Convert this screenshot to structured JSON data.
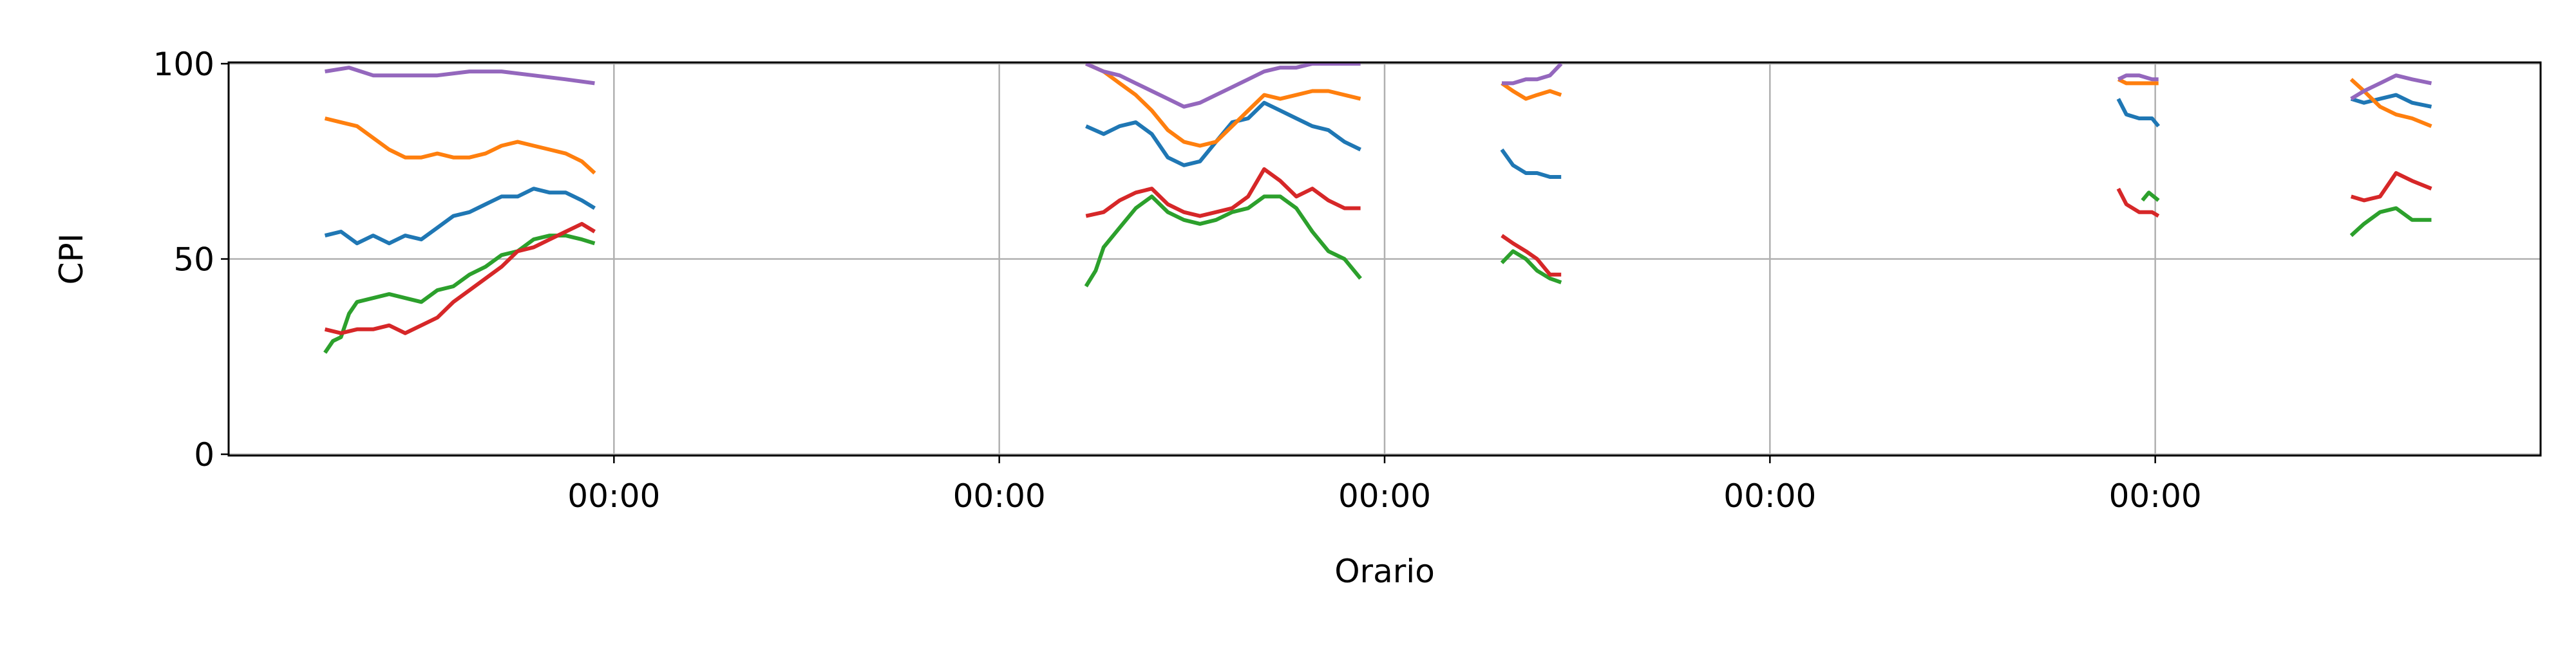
{
  "chart_data": {
    "type": "line",
    "title": "",
    "xlabel": "Orario",
    "ylabel": "CPI",
    "ylim": [
      0,
      100
    ],
    "xlim": [
      0,
      1440
    ],
    "y_ticks": [
      {
        "value": 0,
        "label": "0"
      },
      {
        "value": 50,
        "label": "50"
      },
      {
        "value": 100,
        "label": "100"
      }
    ],
    "x_ticks": [
      {
        "value": 240,
        "label": "00:00"
      },
      {
        "value": 480,
        "label": "00:00"
      },
      {
        "value": 720,
        "label": "00:00"
      },
      {
        "value": 960,
        "label": "00:00"
      },
      {
        "value": 1200,
        "label": "00:00"
      }
    ],
    "grid": true,
    "legend": "none",
    "series": [
      {
        "color": "#1f77b4",
        "segments": [
          [
            [
              60,
              56
            ],
            [
              70,
              57
            ],
            [
              80,
              54
            ],
            [
              90,
              56
            ],
            [
              100,
              54
            ],
            [
              110,
              56
            ],
            [
              120,
              55
            ],
            [
              130,
              58
            ],
            [
              140,
              61
            ],
            [
              150,
              62
            ],
            [
              160,
              64
            ],
            [
              170,
              66
            ],
            [
              180,
              66
            ],
            [
              190,
              68
            ],
            [
              200,
              67
            ],
            [
              210,
              67
            ],
            [
              220,
              65
            ],
            [
              228,
              63
            ]
          ],
          [
            [
              534,
              84
            ],
            [
              545,
              82
            ],
            [
              555,
              84
            ],
            [
              565,
              85
            ],
            [
              575,
              82
            ],
            [
              585,
              76
            ],
            [
              595,
              74
            ],
            [
              605,
              75
            ],
            [
              615,
              80
            ],
            [
              625,
              85
            ],
            [
              635,
              86
            ],
            [
              645,
              90
            ],
            [
              655,
              88
            ],
            [
              665,
              86
            ],
            [
              675,
              84
            ],
            [
              685,
              83
            ],
            [
              695,
              80
            ],
            [
              705,
              78
            ]
          ],
          [
            [
              793,
              78
            ],
            [
              800,
              74
            ],
            [
              808,
              72
            ],
            [
              815,
              72
            ],
            [
              823,
              71
            ],
            [
              830,
              71
            ]
          ],
          [
            [
              1177,
              91
            ],
            [
              1182,
              87
            ],
            [
              1190,
              86
            ],
            [
              1198,
              86
            ],
            [
              1202,
              84
            ]
          ],
          [
            [
              1322,
              91
            ],
            [
              1330,
              90
            ],
            [
              1340,
              91
            ],
            [
              1350,
              92
            ],
            [
              1360,
              90
            ],
            [
              1372,
              89
            ]
          ]
        ]
      },
      {
        "color": "#ff7f0e",
        "segments": [
          [
            [
              60,
              86
            ],
            [
              70,
              85
            ],
            [
              80,
              84
            ],
            [
              90,
              81
            ],
            [
              100,
              78
            ],
            [
              110,
              76
            ],
            [
              120,
              76
            ],
            [
              130,
              77
            ],
            [
              140,
              76
            ],
            [
              150,
              76
            ],
            [
              160,
              77
            ],
            [
              170,
              79
            ],
            [
              180,
              80
            ],
            [
              190,
              79
            ],
            [
              200,
              78
            ],
            [
              210,
              77
            ],
            [
              220,
              75
            ],
            [
              228,
              72
            ]
          ],
          [
            [
              534,
              100
            ],
            [
              545,
              98
            ],
            [
              555,
              95
            ],
            [
              565,
              92
            ],
            [
              575,
              88
            ],
            [
              585,
              83
            ],
            [
              595,
              80
            ],
            [
              605,
              79
            ],
            [
              615,
              80
            ],
            [
              625,
              84
            ],
            [
              635,
              88
            ],
            [
              645,
              92
            ],
            [
              655,
              91
            ],
            [
              665,
              92
            ],
            [
              675,
              93
            ],
            [
              685,
              93
            ],
            [
              695,
              92
            ],
            [
              705,
              91
            ]
          ],
          [
            [
              793,
              95
            ],
            [
              800,
              93
            ],
            [
              808,
              91
            ],
            [
              815,
              92
            ],
            [
              823,
              93
            ],
            [
              830,
              92
            ]
          ],
          [
            [
              1177,
              96
            ],
            [
              1182,
              95
            ],
            [
              1190,
              95
            ],
            [
              1198,
              95
            ],
            [
              1202,
              95
            ]
          ],
          [
            [
              1322,
              96
            ],
            [
              1330,
              93
            ],
            [
              1340,
              89
            ],
            [
              1350,
              87
            ],
            [
              1360,
              86
            ],
            [
              1372,
              84
            ]
          ]
        ]
      },
      {
        "color": "#2ca02c",
        "segments": [
          [
            [
              60,
              26
            ],
            [
              65,
              29
            ],
            [
              70,
              30
            ],
            [
              75,
              36
            ],
            [
              80,
              39
            ],
            [
              90,
              40
            ],
            [
              100,
              41
            ],
            [
              110,
              40
            ],
            [
              120,
              39
            ],
            [
              130,
              42
            ],
            [
              140,
              43
            ],
            [
              150,
              46
            ],
            [
              160,
              48
            ],
            [
              170,
              51
            ],
            [
              180,
              52
            ],
            [
              190,
              55
            ],
            [
              200,
              56
            ],
            [
              210,
              56
            ],
            [
              220,
              55
            ],
            [
              228,
              54
            ]
          ],
          [
            [
              534,
              43
            ],
            [
              540,
              47
            ],
            [
              545,
              53
            ],
            [
              555,
              58
            ],
            [
              565,
              63
            ],
            [
              575,
              66
            ],
            [
              585,
              62
            ],
            [
              595,
              60
            ],
            [
              605,
              59
            ],
            [
              615,
              60
            ],
            [
              625,
              62
            ],
            [
              635,
              63
            ],
            [
              645,
              66
            ],
            [
              655,
              66
            ],
            [
              665,
              63
            ],
            [
              675,
              57
            ],
            [
              685,
              52
            ],
            [
              695,
              50
            ],
            [
              705,
              45
            ]
          ],
          [
            [
              793,
              49
            ],
            [
              800,
              52
            ],
            [
              808,
              50
            ],
            [
              815,
              47
            ],
            [
              823,
              45
            ],
            [
              830,
              44
            ]
          ],
          [
            [
              1192,
              65
            ],
            [
              1196,
              67
            ],
            [
              1202,
              65
            ]
          ],
          [
            [
              1322,
              56
            ],
            [
              1330,
              59
            ],
            [
              1340,
              62
            ],
            [
              1350,
              63
            ],
            [
              1360,
              60
            ],
            [
              1372,
              60
            ]
          ]
        ]
      },
      {
        "color": "#d62728",
        "segments": [
          [
            [
              60,
              32
            ],
            [
              70,
              31
            ],
            [
              80,
              32
            ],
            [
              90,
              32
            ],
            [
              100,
              33
            ],
            [
              110,
              31
            ],
            [
              120,
              33
            ],
            [
              130,
              35
            ],
            [
              140,
              39
            ],
            [
              150,
              42
            ],
            [
              160,
              45
            ],
            [
              170,
              48
            ],
            [
              180,
              52
            ],
            [
              190,
              53
            ],
            [
              200,
              55
            ],
            [
              210,
              57
            ],
            [
              220,
              59
            ],
            [
              228,
              57
            ]
          ],
          [
            [
              534,
              61
            ],
            [
              545,
              62
            ],
            [
              555,
              65
            ],
            [
              565,
              67
            ],
            [
              575,
              68
            ],
            [
              585,
              64
            ],
            [
              595,
              62
            ],
            [
              605,
              61
            ],
            [
              615,
              62
            ],
            [
              625,
              63
            ],
            [
              635,
              66
            ],
            [
              645,
              73
            ],
            [
              655,
              70
            ],
            [
              665,
              66
            ],
            [
              675,
              68
            ],
            [
              685,
              65
            ],
            [
              695,
              63
            ],
            [
              705,
              63
            ]
          ],
          [
            [
              793,
              56
            ],
            [
              800,
              54
            ],
            [
              808,
              52
            ],
            [
              815,
              50
            ],
            [
              823,
              46
            ],
            [
              830,
              46
            ]
          ],
          [
            [
              1177,
              68
            ],
            [
              1182,
              64
            ],
            [
              1190,
              62
            ],
            [
              1198,
              62
            ],
            [
              1202,
              61
            ]
          ],
          [
            [
              1322,
              66
            ],
            [
              1330,
              65
            ],
            [
              1340,
              66
            ],
            [
              1350,
              72
            ],
            [
              1360,
              70
            ],
            [
              1372,
              68
            ]
          ]
        ]
      },
      {
        "color": "#9467bd",
        "segments": [
          [
            [
              60,
              98
            ],
            [
              75,
              99
            ],
            [
              90,
              97
            ],
            [
              110,
              97
            ],
            [
              130,
              97
            ],
            [
              150,
              98
            ],
            [
              170,
              98
            ],
            [
              190,
              97
            ],
            [
              210,
              96
            ],
            [
              228,
              95
            ]
          ],
          [
            [
              534,
              100
            ],
            [
              545,
              98
            ],
            [
              555,
              97
            ],
            [
              565,
              95
            ],
            [
              575,
              93
            ],
            [
              585,
              91
            ],
            [
              595,
              89
            ],
            [
              605,
              90
            ],
            [
              615,
              92
            ],
            [
              625,
              94
            ],
            [
              635,
              96
            ],
            [
              645,
              98
            ],
            [
              655,
              99
            ],
            [
              665,
              99
            ],
            [
              675,
              100
            ],
            [
              685,
              100
            ],
            [
              695,
              100
            ],
            [
              705,
              100
            ]
          ],
          [
            [
              793,
              95
            ],
            [
              800,
              95
            ],
            [
              808,
              96
            ],
            [
              815,
              96
            ],
            [
              823,
              97
            ],
            [
              830,
              100
            ]
          ],
          [
            [
              1177,
              96
            ],
            [
              1182,
              97
            ],
            [
              1190,
              97
            ],
            [
              1198,
              96
            ],
            [
              1202,
              96
            ]
          ],
          [
            [
              1322,
              91
            ],
            [
              1330,
              93
            ],
            [
              1340,
              95
            ],
            [
              1350,
              97
            ],
            [
              1360,
              96
            ],
            [
              1372,
              95
            ]
          ]
        ]
      }
    ]
  }
}
